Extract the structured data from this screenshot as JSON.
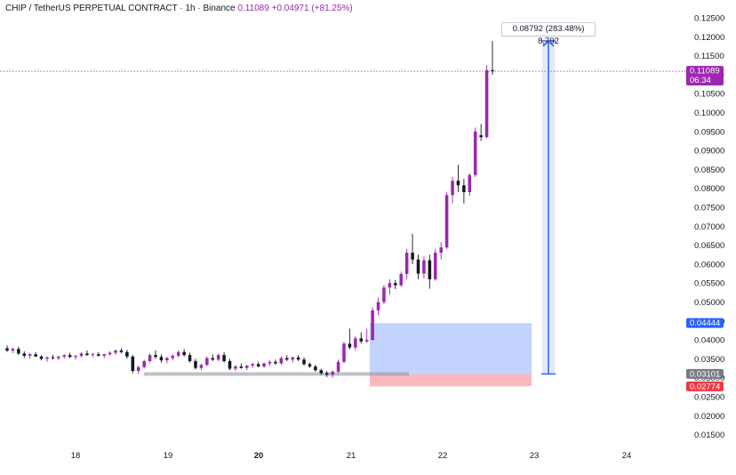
{
  "legend": {
    "title": "CHIP / TetherUS PERPETUAL CONTRACT · 1h · Binance",
    "price": "0.11089",
    "change": "+0.04971 (+81.25%)"
  },
  "measure_label": "0.08792 (283.48%) 8,792",
  "price_axis": {
    "ticks": [
      "0.12500",
      "0.12000",
      "0.11500",
      "0.11000",
      "0.10500",
      "0.10000",
      "0.09500",
      "0.09000",
      "0.08500",
      "0.08000",
      "0.07500",
      "0.07000",
      "0.06500",
      "0.06000",
      "0.05500",
      "0.05000",
      "0.04500",
      "0.04000",
      "0.03500",
      "0.03000",
      "0.02500",
      "0.02000",
      "0.01500"
    ]
  },
  "price_tags": [
    {
      "name": "current",
      "value": "0.11089",
      "sub": "06:34",
      "color": "#9c27b0"
    },
    {
      "name": "target",
      "value": "0.04444",
      "color": "#2962ff"
    },
    {
      "name": "entry",
      "value": "0.03101",
      "color": "#787b86"
    },
    {
      "name": "stop",
      "value": "0.02774",
      "color": "#f23645"
    }
  ],
  "colors": {
    "up": "#9c27b0",
    "down": "#131722",
    "profit_zone": "#2962ff",
    "loss_zone": "#f23645",
    "measure": "#2962ff"
  },
  "chart_data": {
    "type": "candlestick",
    "x_labels": [
      "18",
      "19",
      "20",
      "21",
      "22",
      "23",
      "24"
    ],
    "ylim": [
      0.0118,
      0.13
    ],
    "current_price": 0.11089,
    "position_tool": {
      "target": 0.04444,
      "entry": 0.03101,
      "stop": 0.02774
    },
    "measure": {
      "from": 0.031,
      "to": 0.1189,
      "label": "0.08792 (283.48%) 8,792"
    },
    "support_line": 0.031,
    "candles_ohlc": [
      [
        0.0378,
        0.0385,
        0.0368,
        0.0372
      ],
      [
        0.0372,
        0.038,
        0.0365,
        0.0376
      ],
      [
        0.0376,
        0.0382,
        0.036,
        0.0364
      ],
      [
        0.0364,
        0.037,
        0.0352,
        0.0358
      ],
      [
        0.0358,
        0.0365,
        0.035,
        0.0362
      ],
      [
        0.0362,
        0.0368,
        0.0355,
        0.0356
      ],
      [
        0.0356,
        0.036,
        0.0346,
        0.035
      ],
      [
        0.035,
        0.0356,
        0.0342,
        0.0354
      ],
      [
        0.0354,
        0.036,
        0.0348,
        0.0352
      ],
      [
        0.0352,
        0.0358,
        0.0346,
        0.0356
      ],
      [
        0.0356,
        0.0362,
        0.035,
        0.036
      ],
      [
        0.036,
        0.0366,
        0.0352,
        0.0355
      ],
      [
        0.0355,
        0.036,
        0.0348,
        0.0358
      ],
      [
        0.0358,
        0.0368,
        0.0354,
        0.0364
      ],
      [
        0.0364,
        0.0372,
        0.0358,
        0.036
      ],
      [
        0.036,
        0.0366,
        0.0354,
        0.0362
      ],
      [
        0.0362,
        0.0368,
        0.0356,
        0.0358
      ],
      [
        0.0358,
        0.0364,
        0.0352,
        0.0362
      ],
      [
        0.0362,
        0.037,
        0.0358,
        0.0366
      ],
      [
        0.0366,
        0.0374,
        0.036,
        0.0372
      ],
      [
        0.0372,
        0.0378,
        0.0364,
        0.0368
      ],
      [
        0.0368,
        0.0374,
        0.035,
        0.0356
      ],
      [
        0.0356,
        0.036,
        0.0312,
        0.0318
      ],
      [
        0.0318,
        0.0332,
        0.031,
        0.0328
      ],
      [
        0.0328,
        0.0348,
        0.0324,
        0.0344
      ],
      [
        0.0344,
        0.0365,
        0.034,
        0.036
      ],
      [
        0.036,
        0.0372,
        0.035,
        0.0355
      ],
      [
        0.0355,
        0.0362,
        0.034,
        0.0346
      ],
      [
        0.0346,
        0.0356,
        0.0338,
        0.0352
      ],
      [
        0.0352,
        0.0362,
        0.0346,
        0.0358
      ],
      [
        0.0358,
        0.0372,
        0.0354,
        0.0368
      ],
      [
        0.0368,
        0.0376,
        0.0356,
        0.036
      ],
      [
        0.036,
        0.0366,
        0.034,
        0.0344
      ],
      [
        0.0344,
        0.035,
        0.0322,
        0.0326
      ],
      [
        0.0326,
        0.0338,
        0.032,
        0.0334
      ],
      [
        0.0334,
        0.0356,
        0.033,
        0.0352
      ],
      [
        0.0352,
        0.0362,
        0.0344,
        0.0348
      ],
      [
        0.0348,
        0.0364,
        0.0344,
        0.036
      ],
      [
        0.036,
        0.0368,
        0.034,
        0.0344
      ],
      [
        0.0344,
        0.035,
        0.032,
        0.0324
      ],
      [
        0.0324,
        0.0334,
        0.0318,
        0.033
      ],
      [
        0.033,
        0.0338,
        0.0324,
        0.0326
      ],
      [
        0.0326,
        0.0334,
        0.032,
        0.0332
      ],
      [
        0.0332,
        0.034,
        0.0326,
        0.0336
      ],
      [
        0.0336,
        0.0342,
        0.0328,
        0.033
      ],
      [
        0.033,
        0.034,
        0.0326,
        0.0338
      ],
      [
        0.0338,
        0.0346,
        0.0332,
        0.0342
      ],
      [
        0.0342,
        0.0348,
        0.0334,
        0.0338
      ],
      [
        0.0338,
        0.0356,
        0.0334,
        0.0352
      ],
      [
        0.0352,
        0.036,
        0.0344,
        0.0348
      ],
      [
        0.0348,
        0.0356,
        0.034,
        0.0354
      ],
      [
        0.0354,
        0.036,
        0.0344,
        0.0348
      ],
      [
        0.0348,
        0.0354,
        0.0332,
        0.0336
      ],
      [
        0.0336,
        0.034,
        0.0326,
        0.033
      ],
      [
        0.033,
        0.0334,
        0.0316,
        0.032
      ],
      [
        0.032,
        0.0324,
        0.0308,
        0.0312
      ],
      [
        0.0312,
        0.0318,
        0.0302,
        0.0308
      ],
      [
        0.0308,
        0.032,
        0.03,
        0.0316
      ],
      [
        0.0316,
        0.0348,
        0.0312,
        0.0342
      ],
      [
        0.0342,
        0.0395,
        0.0338,
        0.039
      ],
      [
        0.039,
        0.043,
        0.0375,
        0.038
      ],
      [
        0.038,
        0.041,
        0.0372,
        0.0404
      ],
      [
        0.0404,
        0.042,
        0.039,
        0.0396
      ],
      [
        0.0396,
        0.043,
        0.0392,
        0.04
      ],
      [
        0.04,
        0.0486,
        0.0398,
        0.0478
      ],
      [
        0.0478,
        0.0512,
        0.0465,
        0.05
      ],
      [
        0.05,
        0.0545,
        0.0494,
        0.0538
      ],
      [
        0.0538,
        0.056,
        0.052,
        0.055
      ],
      [
        0.055,
        0.0558,
        0.0534,
        0.0544
      ],
      [
        0.0544,
        0.058,
        0.054,
        0.0574
      ],
      [
        0.0574,
        0.064,
        0.056,
        0.063
      ],
      [
        0.063,
        0.068,
        0.06,
        0.0612
      ],
      [
        0.0612,
        0.0625,
        0.056,
        0.0575
      ],
      [
        0.0575,
        0.062,
        0.0562,
        0.061
      ],
      [
        0.061,
        0.0625,
        0.0535,
        0.056
      ],
      [
        0.056,
        0.064,
        0.0556,
        0.063
      ],
      [
        0.063,
        0.0658,
        0.0612,
        0.0644
      ],
      [
        0.0644,
        0.079,
        0.064,
        0.0782
      ],
      [
        0.0782,
        0.083,
        0.076,
        0.082
      ],
      [
        0.082,
        0.0862,
        0.079,
        0.0808
      ],
      [
        0.0808,
        0.0825,
        0.076,
        0.079
      ],
      [
        0.079,
        0.084,
        0.078,
        0.0835
      ],
      [
        0.0835,
        0.096,
        0.083,
        0.095
      ],
      [
        0.094,
        0.097,
        0.0925,
        0.0935
      ],
      [
        0.0935,
        0.1125,
        0.0932,
        0.1112
      ],
      [
        0.1112,
        0.1189,
        0.11,
        0.1109
      ]
    ]
  }
}
